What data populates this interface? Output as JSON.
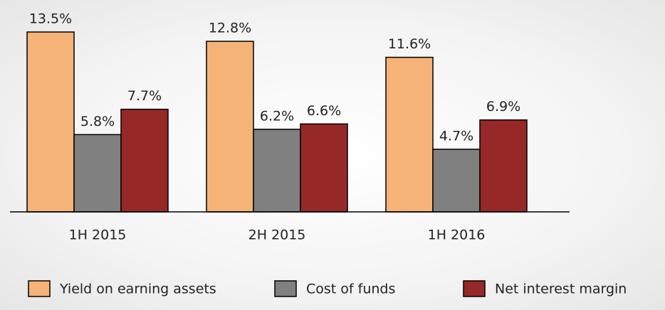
{
  "chart_data": {
    "type": "bar",
    "categories": [
      "1H 2015",
      "2H 2015",
      "1H 2016"
    ],
    "series": [
      {
        "name": "Yield on earning assets",
        "color": "#f5b377",
        "values": [
          13.5,
          12.8,
          11.6
        ],
        "value_labels": [
          "13.5%",
          "12.8%",
          "11.6%"
        ]
      },
      {
        "name": "Cost of funds",
        "color": "#808080",
        "values": [
          5.8,
          6.2,
          4.7
        ],
        "value_labels": [
          "5.8%",
          "6.2%",
          "4.7%"
        ]
      },
      {
        "name": "Net interest margin",
        "color": "#962828",
        "values": [
          7.7,
          6.6,
          6.9
        ],
        "value_labels": [
          "7.7%",
          "6.6%",
          "6.9%"
        ]
      }
    ],
    "legend": "bottom"
  }
}
